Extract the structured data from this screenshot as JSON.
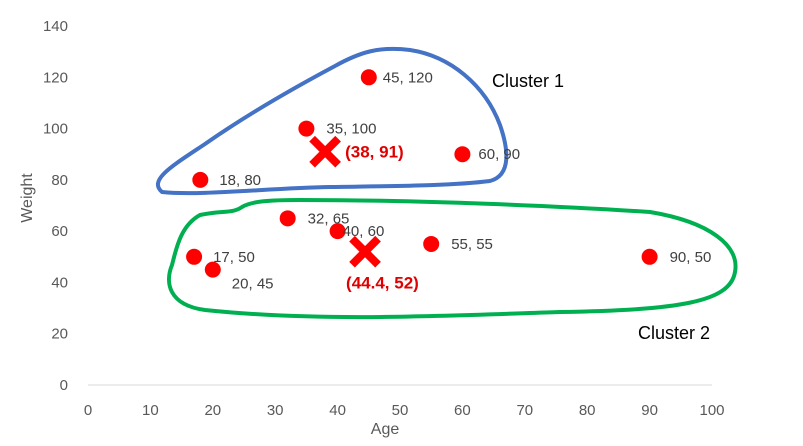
{
  "chart_data": {
    "type": "scatter",
    "title": "",
    "xlabel": "Age",
    "ylabel": "Weight",
    "xlim": [
      0,
      100
    ],
    "ylim": [
      0,
      140
    ],
    "xticks": [
      "0",
      "10",
      "20",
      "30",
      "40",
      "50",
      "60",
      "70",
      "80",
      "90",
      "100"
    ],
    "yticks": [
      "0",
      "20",
      "40",
      "60",
      "80",
      "100",
      "120",
      "140"
    ],
    "grid": false,
    "point_color": "#ff0000",
    "centroid_color": "#ff0000",
    "points": [
      {
        "x": 45,
        "y": 120,
        "label": "45, 120"
      },
      {
        "x": 35,
        "y": 100,
        "label": "35, 100"
      },
      {
        "x": 60,
        "y": 90,
        "label": "60, 90"
      },
      {
        "x": 18,
        "y": 80,
        "label": "18, 80"
      },
      {
        "x": 32,
        "y": 65,
        "label": "32, 65"
      },
      {
        "x": 40,
        "y": 60,
        "label": "40, 60"
      },
      {
        "x": 55,
        "y": 55,
        "label": "55, 55"
      },
      {
        "x": 17,
        "y": 50,
        "label": "17, 50"
      },
      {
        "x": 20,
        "y": 45,
        "label": "20, 45"
      },
      {
        "x": 90,
        "y": 50,
        "label": "90, 50"
      }
    ],
    "centroids": [
      {
        "x": 38,
        "y": 91,
        "label": "(38, 91)"
      },
      {
        "x": 44.4,
        "y": 52,
        "label": "(44.4, 52)"
      }
    ],
    "clusters": [
      {
        "label": "Cluster 1",
        "color": "#4472c4"
      },
      {
        "label": "Cluster 2",
        "color": "#00b050"
      }
    ]
  }
}
